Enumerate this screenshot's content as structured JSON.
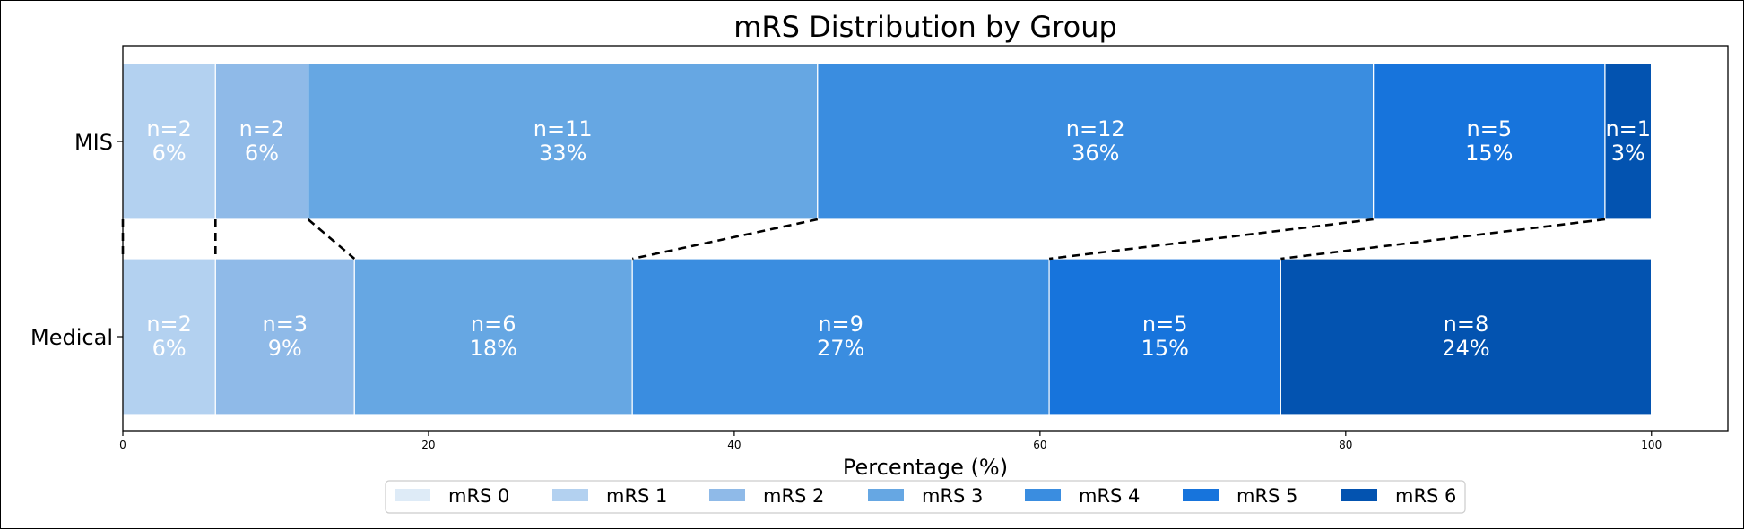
{
  "chart_data": {
    "type": "bar",
    "orientation": "horizontal",
    "stacked": true,
    "title": "mRS Distribution by Group",
    "xlabel": "Percentage (%)",
    "ylabel": "",
    "xlim": [
      0,
      105
    ],
    "xticks": [
      0,
      20,
      40,
      60,
      80,
      100
    ],
    "categories": [
      "MIS",
      "Medical"
    ],
    "series": [
      {
        "name": "mRS 0",
        "color": "#deebf7",
        "values": [
          0,
          0
        ],
        "n": [
          0,
          0
        ]
      },
      {
        "name": "mRS 1",
        "color": "#b3d1f0",
        "values": [
          6.06,
          6.06
        ],
        "n": [
          2,
          2
        ]
      },
      {
        "name": "mRS 2",
        "color": "#8fbae8",
        "values": [
          6.06,
          9.09
        ],
        "n": [
          2,
          3
        ]
      },
      {
        "name": "mRS 3",
        "color": "#66a7e3",
        "values": [
          33.33,
          18.18
        ],
        "n": [
          11,
          6
        ]
      },
      {
        "name": "mRS 4",
        "color": "#3a8de0",
        "values": [
          36.36,
          27.27
        ],
        "n": [
          12,
          9
        ]
      },
      {
        "name": "mRS 5",
        "color": "#1774dc",
        "values": [
          15.15,
          15.15
        ],
        "n": [
          5,
          5
        ]
      },
      {
        "name": "mRS 6",
        "color": "#0353b0",
        "values": [
          3.03,
          24.24
        ],
        "n": [
          1,
          8
        ]
      }
    ],
    "bar_labels": {
      "MIS": [
        {
          "n": "n=2",
          "pct": "6%"
        },
        {
          "n": "n=2",
          "pct": "6%"
        },
        {
          "n": "n=11",
          "pct": "33%"
        },
        {
          "n": "n=12",
          "pct": "36%"
        },
        {
          "n": "n=5",
          "pct": "15%"
        },
        {
          "n": "n=1",
          "pct": "3%"
        }
      ],
      "Medical": [
        {
          "n": "n=2",
          "pct": "6%"
        },
        {
          "n": "n=3",
          "pct": "9%"
        },
        {
          "n": "n=6",
          "pct": "18%"
        },
        {
          "n": "n=9",
          "pct": "27%"
        },
        {
          "n": "n=5",
          "pct": "15%"
        },
        {
          "n": "n=8",
          "pct": "24%"
        }
      ]
    },
    "grid": false,
    "legend_position": "bottom-center",
    "connector_lines": "dashed lines linking cumulative boundaries between the two bars"
  }
}
